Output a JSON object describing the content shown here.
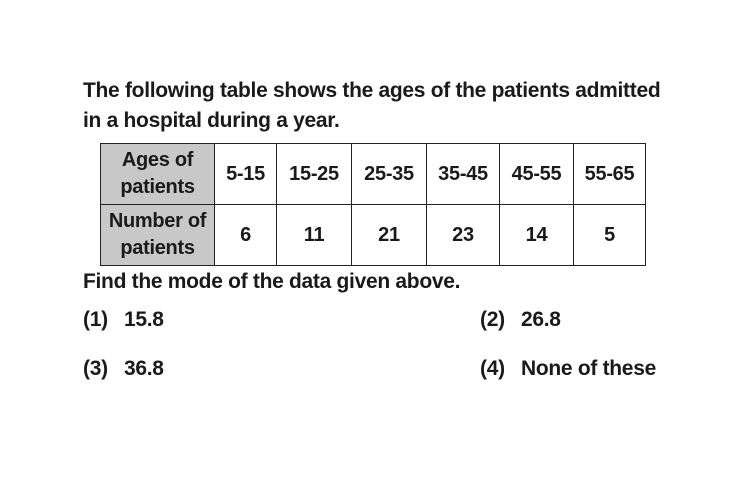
{
  "question": {
    "line1": "The following table shows the ages of the patients admitted",
    "line2": "in a hospital during a year."
  },
  "table": {
    "row_headers": [
      [
        "Ages of",
        "patients"
      ],
      [
        "Number of",
        "patients"
      ]
    ],
    "ages": [
      "5-15",
      "15-25",
      "25-35",
      "35-45",
      "45-55",
      "55-65"
    ],
    "counts": [
      "6",
      "11",
      "21",
      "23",
      "14",
      "5"
    ],
    "header_bg": "#c8c8c8"
  },
  "prompt": "Find the mode of the data given above.",
  "options": [
    {
      "num": "(1)",
      "text": "15.8"
    },
    {
      "num": "(2)",
      "text": "26.8"
    },
    {
      "num": "(3)",
      "text": "36.8"
    },
    {
      "num": "(4)",
      "text": "None of these"
    }
  ]
}
